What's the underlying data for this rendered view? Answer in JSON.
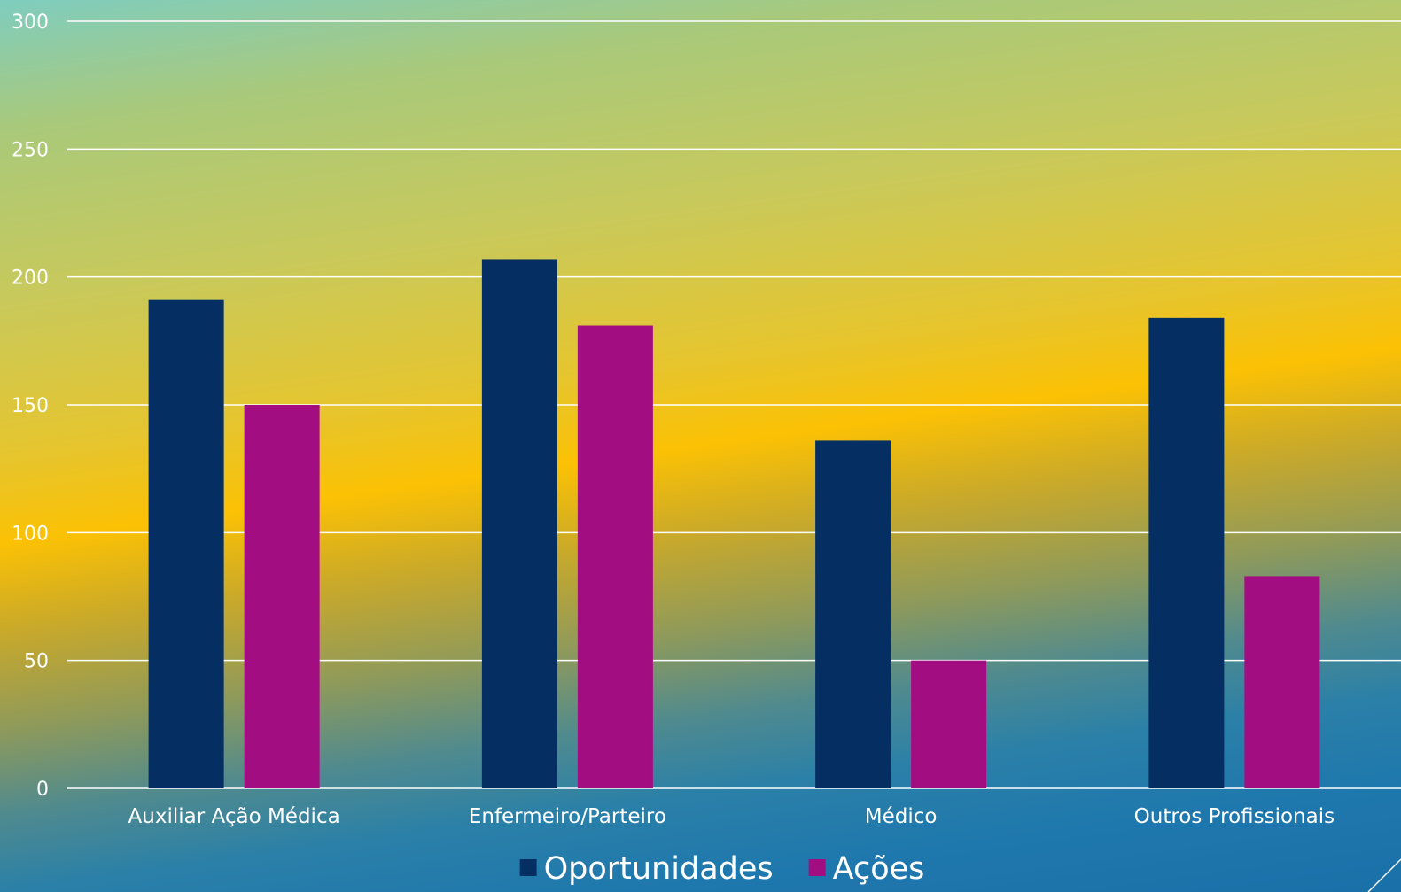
{
  "chart_data": {
    "type": "bar",
    "categories": [
      "Auxiliar Ação Médica",
      "Enfermeiro/Parteiro",
      "Médico",
      "Outros Profissionais"
    ],
    "series": [
      {
        "name": "Oportunidades",
        "values": [
          191,
          207,
          136,
          184
        ],
        "color": "#052f62"
      },
      {
        "name": "Ações",
        "values": [
          150,
          181,
          50,
          83
        ],
        "color": "#a30d82"
      }
    ],
    "ylim": [
      0,
      300
    ],
    "yticks": [
      0,
      50,
      100,
      150,
      200,
      250,
      300
    ],
    "grid": true,
    "legend_position": "bottom"
  }
}
